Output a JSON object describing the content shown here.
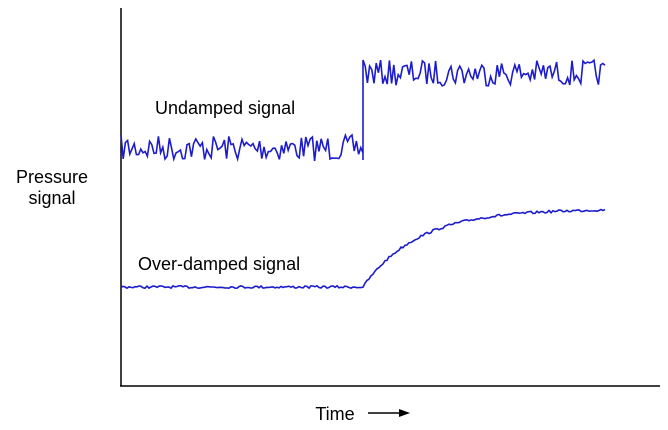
{
  "y_axis_label": {
    "lines": [
      "Pressure",
      "signal"
    ]
  },
  "x_axis_label": "Time",
  "annotations": {
    "undamped": "Undamped signal",
    "over_damped": "Over-damped signal"
  }
}
